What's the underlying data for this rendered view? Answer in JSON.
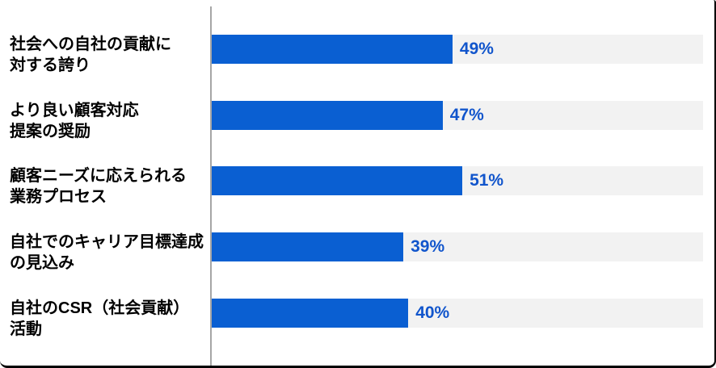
{
  "chart_data": {
    "type": "bar",
    "orientation": "horizontal",
    "categories": [
      "社会への自社の貢献に\n対する誇り",
      "より良い顧客対応\n提案の奨励",
      "顧客ニーズに応えられる\n業務プロセス",
      "自社でのキャリア目標達成\nの見込み",
      "自社のCSR（社会貢献）\n活動"
    ],
    "values": [
      49,
      47,
      51,
      39,
      40
    ],
    "value_labels": [
      "49%",
      "47%",
      "51%",
      "39%",
      "40%"
    ],
    "xlim": [
      0,
      100
    ],
    "grid": false,
    "legend_position": "none",
    "colors": {
      "bar": "#0A5FD2",
      "track": "#F2F2F2",
      "value_label": "#1155CC",
      "axis_line": "#A6A6A6",
      "category_label": "#000000",
      "frame_border": "#000000",
      "background": "#FFFFFF"
    }
  }
}
